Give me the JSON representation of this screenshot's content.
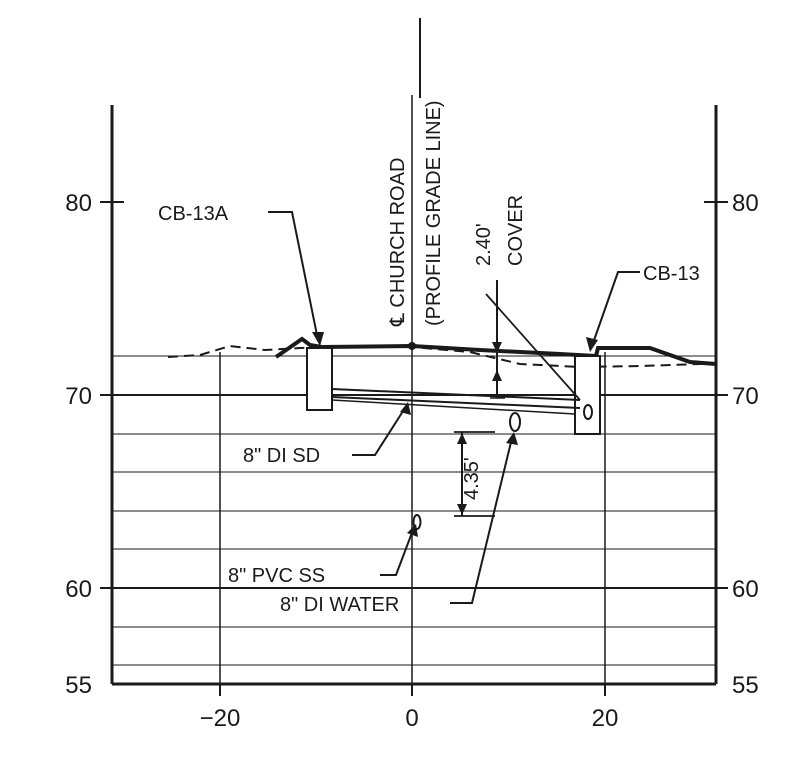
{
  "axes": {
    "y_ticks_left": [
      "80",
      "70",
      "60",
      "55"
    ],
    "y_ticks_right": [
      "80",
      "70",
      "60",
      "55"
    ],
    "x_ticks": [
      "−20",
      "0",
      "20"
    ]
  },
  "labels": {
    "cb13a": "CB-13A",
    "cb13": "CB-13",
    "centerline": "℄ CHURCH ROAD",
    "profile_grade": "(PROFILE GRADE LINE)",
    "cover_value": "2.40'",
    "cover_word": "COVER",
    "di_sd": "8\" DI SD",
    "depth_value": "4.35'",
    "pvc_ss": "8\" PVC SS",
    "di_water": "8\" DI WATER"
  },
  "chart_data": {
    "type": "cross-section",
    "x_range": [
      -32,
      31
    ],
    "y_range": [
      55,
      90
    ],
    "x_ticks": [
      -20,
      0,
      20
    ],
    "y_ticks": [
      55,
      60,
      70,
      80
    ],
    "grid": true,
    "proposed_surface": [
      [
        -14,
        71.8
      ],
      [
        -11.5,
        72.8
      ],
      [
        -10,
        72.4
      ],
      [
        0,
        72.5
      ],
      [
        10,
        72.3
      ],
      [
        19,
        72.0
      ],
      [
        19.5,
        72.5
      ],
      [
        25,
        72.5
      ],
      [
        29,
        71.7
      ]
    ],
    "existing_surface": [
      [
        -26,
        72.0
      ],
      [
        -20,
        72.6
      ],
      [
        -10,
        72.5
      ],
      [
        0,
        72.5
      ],
      [
        10,
        71.8
      ],
      [
        20,
        71.6
      ],
      [
        31,
        71.7
      ]
    ],
    "utilities": [
      {
        "name": "8\" DI SD",
        "x": 0,
        "elevation": 69.8
      },
      {
        "name": "8\" DI WATER",
        "x": 11,
        "elevation": 68.9
      },
      {
        "name": "8\" PVC SS",
        "x": 0.5,
        "elevation": 63.6
      }
    ],
    "catch_basins": [
      "CB-13A",
      "CB-13"
    ],
    "annotations": [
      "2.40' COVER",
      "4.35'"
    ]
  }
}
